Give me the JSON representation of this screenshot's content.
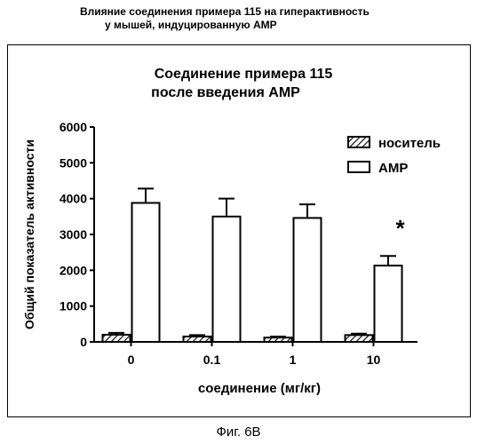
{
  "header": {
    "line1": "Влияние соединения примера 115 на гиперактивность",
    "line2": "у мышей, индуцированную AMP"
  },
  "caption": "Фиг. 6В",
  "chart_data": {
    "type": "bar",
    "title": [
      "Соединение примера 115",
      "после введения AMP"
    ],
    "xlabel": "соединение (мг/кг)",
    "ylabel": "Общий показатель активности",
    "categories": [
      "0",
      "0.1",
      "1",
      "10"
    ],
    "ylim": [
      0,
      6000
    ],
    "yticks": [
      0,
      1000,
      2000,
      3000,
      4000,
      5000,
      6000
    ],
    "grid": false,
    "legend_position": "top-right",
    "series": [
      {
        "name": "носитель",
        "pattern": "hatched",
        "values": [
          200,
          150,
          120,
          190
        ],
        "errors": [
          50,
          40,
          30,
          40
        ]
      },
      {
        "name": "AMP",
        "pattern": "open",
        "values": [
          3880,
          3500,
          3460,
          2130
        ],
        "errors": [
          400,
          500,
          380,
          270
        ]
      }
    ],
    "annotations": [
      {
        "category": "10",
        "text": "*"
      }
    ]
  }
}
